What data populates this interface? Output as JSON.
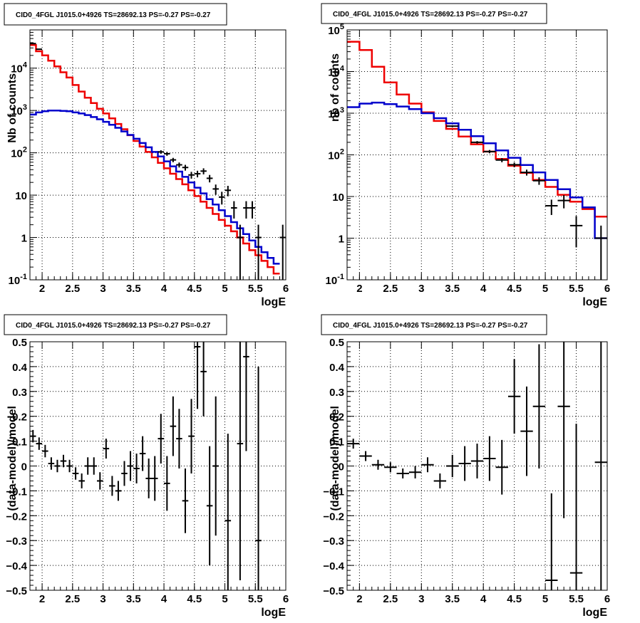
{
  "colors": {
    "data": "#000000",
    "total_model": "#ee0000",
    "component_model": "#0000cc",
    "grid": "#000000",
    "frame": "#000000",
    "background": "#ffffff"
  },
  "chart_data": [
    {
      "type": "line",
      "panel": "top-left",
      "title": "CID0_4FGL J1015.0+4926 TS=28692.13 PS=-0.27 PS=-0.27",
      "xlabel": "logE",
      "ylabel": "Nb of counts",
      "xlim": [
        1.8,
        6.0
      ],
      "ylim": [
        0.1,
        80000
      ],
      "yscale": "log",
      "grid": true,
      "xticks": [
        "2",
        "2.5",
        "3",
        "3.5",
        "4",
        "4.5",
        "5",
        "5.5",
        "6"
      ],
      "yticks": [
        "10^-1",
        "1",
        "10",
        "10^2",
        "10^3",
        "10^4"
      ],
      "bins": {
        "start": 1.8,
        "width": 0.1
      },
      "series": [
        {
          "style": "step",
          "values": [
            35000,
            25000,
            20000,
            15000,
            11000,
            8000,
            6000,
            4000,
            2800,
            2000,
            1500,
            1100,
            850,
            650,
            480,
            360,
            260,
            190,
            140,
            105,
            78,
            58,
            43,
            32,
            24,
            18,
            13,
            9.5,
            7,
            5,
            3.6,
            2.6,
            1.9,
            1.4,
            1.0,
            0.72,
            0.5,
            0.38,
            0.28,
            0.2,
            0.14
          ]
        },
        {
          "style": "step",
          "values": [
            800,
            900,
            960,
            1000,
            1000,
            980,
            960,
            900,
            850,
            780,
            700,
            620,
            540,
            460,
            390,
            320,
            265,
            215,
            170,
            135,
            105,
            82,
            63,
            48,
            36,
            27,
            20,
            15,
            11,
            8,
            6,
            4.4,
            3.2,
            2.3,
            1.65,
            1.2,
            0.85,
            0.6,
            0.45,
            0.33,
            0.24
          ]
        },
        {
          "style": "errorbar",
          "points": [
            {
              "x": 1.85,
              "y": 38000,
              "yerr": 600
            },
            {
              "x": 1.95,
              "y": 28000,
              "yerr": 500
            },
            {
              "x": 4.25,
              "y": 52,
              "yerr": 7
            },
            {
              "x": 4.15,
              "y": 68,
              "yerr": 8
            },
            {
              "x": 3.95,
              "y": 105,
              "yerr": 10
            },
            {
              "x": 4.05,
              "y": 95,
              "yerr": 10
            },
            {
              "x": 4.35,
              "y": 45,
              "yerr": 7
            },
            {
              "x": 4.45,
              "y": 30,
              "yerr": 5.5
            },
            {
              "x": 4.55,
              "y": 32,
              "yerr": 5.7
            },
            {
              "x": 4.65,
              "y": 37,
              "yerr": 6
            },
            {
              "x": 4.75,
              "y": 25,
              "yerr": 5
            },
            {
              "x": 4.85,
              "y": 14,
              "yerr": 3.8
            },
            {
              "x": 4.95,
              "y": 9,
              "yerr": 3
            },
            {
              "x": 5.05,
              "y": 13,
              "yerr": 3.6
            },
            {
              "x": 5.15,
              "y": 5,
              "yerr": 2.2
            },
            {
              "x": 5.25,
              "y": 1,
              "yerr": 1
            },
            {
              "x": 5.35,
              "y": 5,
              "yerr": 2.2
            },
            {
              "x": 5.45,
              "y": 5,
              "yerr": 2.2
            },
            {
              "x": 5.55,
              "y": 1,
              "yerr": 1
            },
            {
              "x": 5.95,
              "y": 1,
              "yerr": 1
            }
          ]
        }
      ]
    },
    {
      "type": "line",
      "panel": "top-right",
      "title": "CID0_4FGL J1015.0+4926 TS=28692.13 PS=-0.27 PS=-0.27",
      "xlabel": "logE",
      "ylabel": "nb of counts",
      "xlim": [
        1.8,
        6.0
      ],
      "ylim": [
        0.1,
        100000
      ],
      "yscale": "log",
      "grid": true,
      "xticks": [
        "2",
        "2.5",
        "3",
        "3.5",
        "4",
        "4.5",
        "5",
        "5.5",
        "6"
      ],
      "yticks": [
        "10^-1",
        "1",
        "10",
        "10^2",
        "10^3",
        "10^4",
        "10^5"
      ],
      "bins": {
        "start": 1.8,
        "width": 0.2
      },
      "series": [
        {
          "style": "step",
          "values": [
            52000,
            33000,
            13000,
            5500,
            2800,
            1700,
            1050,
            650,
            420,
            275,
            180,
            120,
            80,
            55,
            37,
            25,
            17,
            11,
            7.5,
            5,
            3.3
          ]
        },
        {
          "style": "step",
          "values": [
            1400,
            1700,
            1800,
            1650,
            1450,
            1250,
            1000,
            760,
            570,
            400,
            280,
            190,
            128,
            85,
            57,
            38,
            25,
            15,
            9.5,
            5.5,
            1.0
          ]
        },
        {
          "style": "errorbar",
          "points": [
            {
              "x": 3.5,
              "y": 490,
              "yerr": 22
            },
            {
              "x": 3.9,
              "y": 200,
              "yerr": 14
            },
            {
              "x": 4.1,
              "y": 120,
              "yerr": 11
            },
            {
              "x": 4.3,
              "y": 75,
              "yerr": 8.5
            },
            {
              "x": 4.5,
              "y": 58,
              "yerr": 7.6
            },
            {
              "x": 4.7,
              "y": 38,
              "yerr": 6.2
            },
            {
              "x": 4.9,
              "y": 24,
              "yerr": 4.9
            },
            {
              "x": 5.1,
              "y": 6,
              "yerr": 2.4
            },
            {
              "x": 5.3,
              "y": 8,
              "yerr": 2.8
            },
            {
              "x": 5.5,
              "y": 2,
              "yerr": 1.4
            },
            {
              "x": 5.9,
              "y": 1,
              "yerr": 1
            }
          ]
        }
      ]
    },
    {
      "type": "scatter",
      "panel": "bottom-left",
      "title": "CID0_4FGL J1015.0+4926 TS=28692.13 PS=-0.27 PS=-0.27",
      "xlabel": "logE",
      "ylabel": "(data-model)/model",
      "xlim": [
        1.8,
        6.0
      ],
      "ylim": [
        -0.5,
        0.5
      ],
      "grid": true,
      "xticks": [
        "2",
        "2.5",
        "3",
        "3.5",
        "4",
        "4.5",
        "5",
        "5.5",
        "6"
      ],
      "yticks": [
        "-0.5",
        "-0.4",
        "-0.3",
        "-0.2",
        "-0.1",
        "0",
        "0.1",
        "0.2",
        "0.3",
        "0.4",
        "0.5"
      ],
      "xerr": 0.05,
      "points": [
        {
          "x": 1.85,
          "y": 0.12,
          "yerr": 0.025
        },
        {
          "x": 1.95,
          "y": 0.09,
          "yerr": 0.025
        },
        {
          "x": 2.05,
          "y": 0.06,
          "yerr": 0.025
        },
        {
          "x": 2.15,
          "y": 0.01,
          "yerr": 0.025
        },
        {
          "x": 2.25,
          "y": 0.0,
          "yerr": 0.025
        },
        {
          "x": 2.35,
          "y": 0.02,
          "yerr": 0.025
        },
        {
          "x": 2.45,
          "y": 0.0,
          "yerr": 0.025
        },
        {
          "x": 2.55,
          "y": -0.03,
          "yerr": 0.025
        },
        {
          "x": 2.65,
          "y": -0.06,
          "yerr": 0.03
        },
        {
          "x": 2.75,
          "y": 0.0,
          "yerr": 0.035
        },
        {
          "x": 2.85,
          "y": 0.0,
          "yerr": 0.035
        },
        {
          "x": 2.95,
          "y": -0.06,
          "yerr": 0.035
        },
        {
          "x": 3.05,
          "y": 0.07,
          "yerr": 0.04
        },
        {
          "x": 3.15,
          "y": -0.08,
          "yerr": 0.04
        },
        {
          "x": 3.25,
          "y": -0.1,
          "yerr": 0.04
        },
        {
          "x": 3.35,
          "y": -0.03,
          "yerr": 0.05
        },
        {
          "x": 3.45,
          "y": 0.0,
          "yerr": 0.06
        },
        {
          "x": 3.55,
          "y": -0.01,
          "yerr": 0.06
        },
        {
          "x": 3.65,
          "y": 0.05,
          "yerr": 0.07
        },
        {
          "x": 3.75,
          "y": -0.05,
          "yerr": 0.08
        },
        {
          "x": 3.85,
          "y": -0.05,
          "yerr": 0.09
        },
        {
          "x": 3.95,
          "y": 0.11,
          "yerr": 0.1
        },
        {
          "x": 4.05,
          "y": -0.07,
          "yerr": 0.11
        },
        {
          "x": 4.15,
          "y": 0.16,
          "yerr": 0.12
        },
        {
          "x": 4.25,
          "y": 0.11,
          "yerr": 0.12
        },
        {
          "x": 4.35,
          "y": -0.14,
          "yerr": 0.13
        },
        {
          "x": 4.45,
          "y": 0.12,
          "yerr": 0.15
        },
        {
          "x": 4.55,
          "y": 0.48,
          "yerr": 0.25
        },
        {
          "x": 4.65,
          "y": 0.38,
          "yerr": 0.18
        },
        {
          "x": 4.75,
          "y": -0.16,
          "yerr": 0.24
        },
        {
          "x": 4.85,
          "y": 0.0,
          "yerr": 0.28
        },
        {
          "x": 5.05,
          "y": -0.22,
          "yerr": 0.35
        },
        {
          "x": 5.25,
          "y": 0.09,
          "yerr": 0.55
        },
        {
          "x": 5.35,
          "y": 0.44,
          "yerr": 0.38
        },
        {
          "x": 5.55,
          "y": -0.3,
          "yerr": 0.7
        }
      ]
    },
    {
      "type": "scatter",
      "panel": "bottom-right",
      "title": "CID0_4FGL J1015.0+4926 TS=28692.13 PS=-0.27 PS=-0.27",
      "xlabel": "logE",
      "ylabel": "(data-model)/model",
      "xlim": [
        1.8,
        6.0
      ],
      "ylim": [
        -0.5,
        0.5
      ],
      "grid": true,
      "xticks": [
        "2",
        "2.5",
        "3",
        "3.5",
        "4",
        "4.5",
        "5",
        "5.5",
        "6"
      ],
      "yticks": [
        "-0.5",
        "-0.4",
        "-0.3",
        "-0.2",
        "-0.1",
        "0",
        "0.1",
        "0.2",
        "0.3",
        "0.4",
        "0.5"
      ],
      "xerr": 0.1,
      "points": [
        {
          "x": 1.9,
          "y": 0.09,
          "yerr": 0.02
        },
        {
          "x": 2.1,
          "y": 0.04,
          "yerr": 0.02
        },
        {
          "x": 2.3,
          "y": 0.005,
          "yerr": 0.02
        },
        {
          "x": 2.5,
          "y": -0.005,
          "yerr": 0.02
        },
        {
          "x": 2.7,
          "y": -0.03,
          "yerr": 0.02
        },
        {
          "x": 2.9,
          "y": -0.025,
          "yerr": 0.025
        },
        {
          "x": 3.1,
          "y": 0.005,
          "yerr": 0.03
        },
        {
          "x": 3.3,
          "y": -0.06,
          "yerr": 0.03
        },
        {
          "x": 3.5,
          "y": 0.0,
          "yerr": 0.045
        },
        {
          "x": 3.7,
          "y": 0.01,
          "yerr": 0.07
        },
        {
          "x": 3.9,
          "y": 0.02,
          "yerr": 0.07
        },
        {
          "x": 4.1,
          "y": 0.03,
          "yerr": 0.09
        },
        {
          "x": 4.3,
          "y": -0.005,
          "yerr": 0.11
        },
        {
          "x": 4.5,
          "y": 0.28,
          "yerr": 0.15
        },
        {
          "x": 4.7,
          "y": 0.14,
          "yerr": 0.18
        },
        {
          "x": 4.9,
          "y": 0.24,
          "yerr": 0.25
        },
        {
          "x": 5.1,
          "y": -0.46,
          "yerr": 0.35
        },
        {
          "x": 5.3,
          "y": 0.24,
          "yerr": 0.45
        },
        {
          "x": 5.5,
          "y": -0.43,
          "yerr": 0.6
        },
        {
          "x": 5.9,
          "y": 0.015,
          "yerr": 1.0
        }
      ]
    }
  ]
}
